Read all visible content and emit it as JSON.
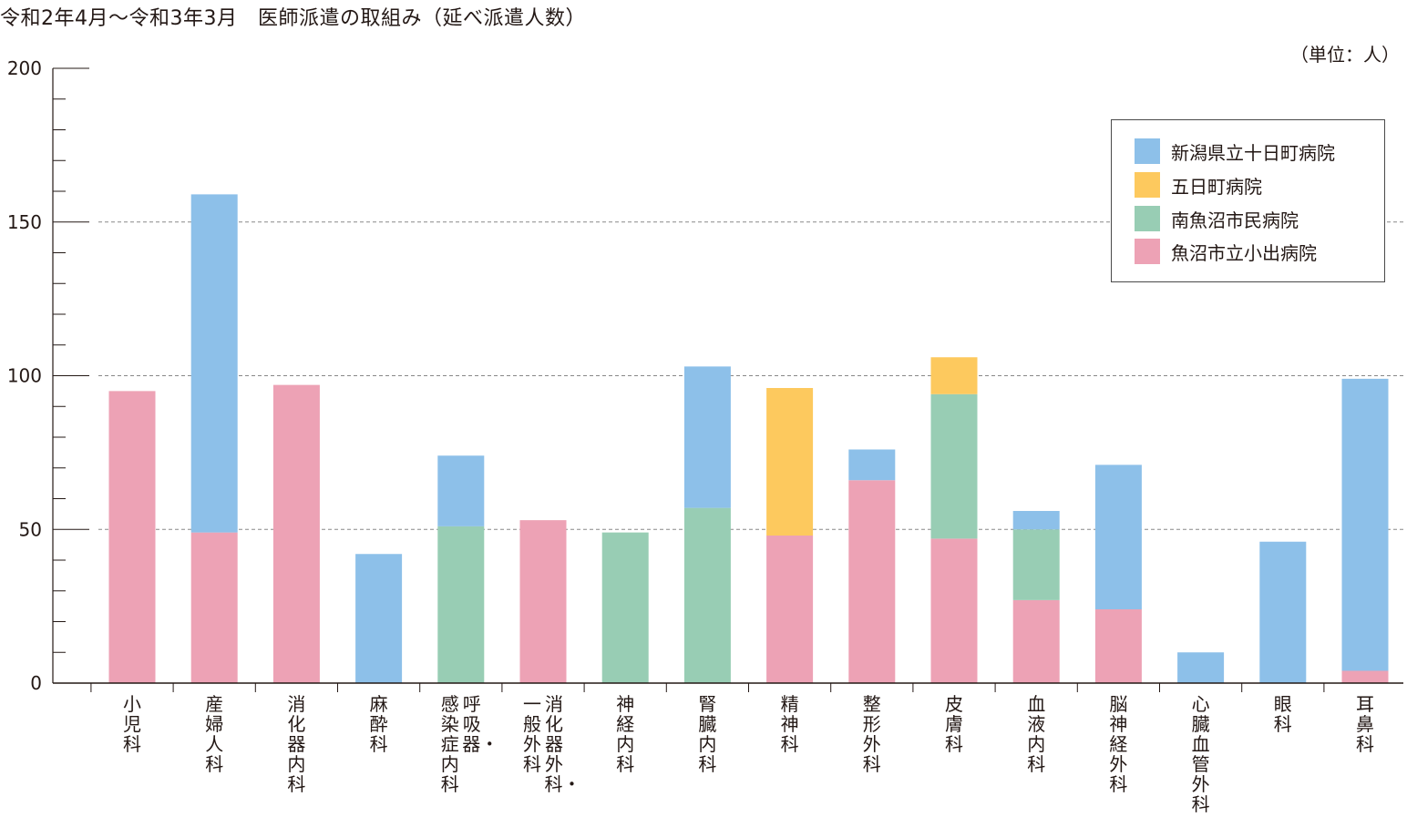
{
  "title": "令和2年4月〜令和3年3月　医師派遣の取組み（延べ派遣人数）",
  "unit": "（単位：人）",
  "colors": {
    "tokamachi": "#8dc0e9",
    "itsukamachi": "#fdc95e",
    "minamiuonuma": "#98cdb4",
    "koide": "#eda2b5",
    "axis": "#231815",
    "gridline": "#888888"
  },
  "chart_data": {
    "type": "bar",
    "stacked": true,
    "ylim": [
      0,
      200
    ],
    "yticks": [
      0,
      50,
      100,
      150,
      200
    ],
    "grid": "dashed at 50, 100, 150",
    "legend_position": "top-right",
    "categories": [
      {
        "lines": [
          "小児科"
        ]
      },
      {
        "lines": [
          "産婦人科"
        ]
      },
      {
        "lines": [
          "消化器内科"
        ]
      },
      {
        "lines": [
          "麻酔科"
        ]
      },
      {
        "lines": [
          "呼吸器・",
          "感染症内科"
        ]
      },
      {
        "lines": [
          "消化器外科・",
          "一般外科"
        ]
      },
      {
        "lines": [
          "神経内科"
        ]
      },
      {
        "lines": [
          "腎臓内科"
        ]
      },
      {
        "lines": [
          "精神科"
        ]
      },
      {
        "lines": [
          "整形外科"
        ]
      },
      {
        "lines": [
          "皮膚科"
        ]
      },
      {
        "lines": [
          "血液内科"
        ]
      },
      {
        "lines": [
          "脳神経外科"
        ]
      },
      {
        "lines": [
          "心臓血管外科"
        ]
      },
      {
        "lines": [
          "眼科"
        ]
      },
      {
        "lines": [
          "耳鼻科"
        ]
      }
    ],
    "series": [
      {
        "name": "魚沼市立小出病院",
        "color_key": "koide",
        "values": [
          95,
          49,
          97,
          0,
          0,
          53,
          0,
          0,
          48,
          66,
          47,
          27,
          24,
          0,
          0,
          4
        ]
      },
      {
        "name": "南魚沼市民病院",
        "color_key": "minamiuonuma",
        "values": [
          0,
          0,
          0,
          0,
          51,
          0,
          49,
          57,
          0,
          0,
          47,
          23,
          0,
          0,
          0,
          0
        ]
      },
      {
        "name": "五日町病院",
        "color_key": "itsukamachi",
        "values": [
          0,
          0,
          0,
          0,
          0,
          0,
          0,
          0,
          48,
          0,
          12,
          0,
          0,
          0,
          0,
          0
        ]
      },
      {
        "name": "新潟県立十日町病院",
        "color_key": "tokamachi",
        "values": [
          0,
          110,
          0,
          42,
          23,
          0,
          0,
          46,
          0,
          10,
          0,
          6,
          47,
          10,
          46,
          95
        ]
      }
    ],
    "legend_order": [
      "新潟県立十日町病院",
      "五日町病院",
      "南魚沼市民病院",
      "魚沼市立小出病院"
    ]
  }
}
